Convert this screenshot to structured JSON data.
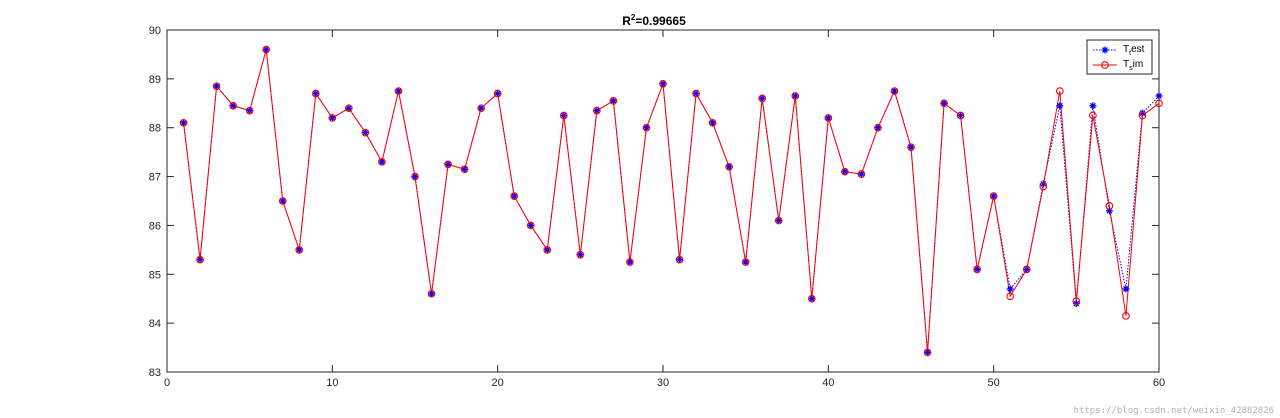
{
  "chart_data": {
    "type": "line",
    "title": "R²=0.99665",
    "title_parts": {
      "base": "R",
      "sup": "2",
      "rest": "=0.99665"
    },
    "xlabel": "",
    "ylabel": "",
    "xlim": [
      0,
      60
    ],
    "ylim": [
      83,
      90
    ],
    "xticks": [
      0,
      10,
      20,
      30,
      40,
      50,
      60
    ],
    "yticks": [
      83,
      84,
      85,
      86,
      87,
      88,
      89,
      90
    ],
    "grid": false,
    "legend_position": "top-right",
    "x": [
      1,
      2,
      3,
      4,
      5,
      6,
      7,
      8,
      9,
      10,
      11,
      12,
      13,
      14,
      15,
      16,
      17,
      18,
      19,
      20,
      21,
      22,
      23,
      24,
      25,
      26,
      27,
      28,
      29,
      30,
      31,
      32,
      33,
      34,
      35,
      36,
      37,
      38,
      39,
      40,
      41,
      42,
      43,
      44,
      45,
      46,
      47,
      48,
      49,
      50,
      51,
      52,
      53,
      54,
      55,
      56,
      57,
      58,
      59,
      60
    ],
    "series": [
      {
        "name": "Ttest",
        "legend_label": {
          "base": "T",
          "sub": "t",
          "rest": "est"
        },
        "color": "#0000ff",
        "line_style": "dotted",
        "marker": "asterisk",
        "values": [
          88.1,
          85.3,
          88.85,
          88.45,
          88.35,
          89.6,
          86.5,
          85.5,
          88.7,
          88.2,
          88.4,
          87.9,
          87.3,
          88.75,
          87.0,
          84.6,
          87.25,
          87.15,
          88.4,
          88.7,
          86.6,
          86.0,
          85.5,
          88.25,
          85.4,
          88.35,
          88.55,
          85.25,
          88.0,
          88.9,
          85.3,
          88.7,
          88.1,
          87.2,
          85.25,
          88.6,
          86.1,
          88.65,
          84.5,
          88.2,
          87.1,
          87.05,
          88.0,
          88.75,
          87.6,
          83.4,
          88.5,
          88.25,
          85.1,
          86.6,
          84.7,
          85.1,
          86.85,
          88.45,
          84.4,
          88.45,
          86.3,
          84.7,
          88.3,
          88.65
        ]
      },
      {
        "name": "Tsim",
        "legend_label": {
          "base": "T",
          "sub": "s",
          "rest": "im"
        },
        "color": "#ff0000",
        "line_style": "solid",
        "marker": "circle",
        "values": [
          88.1,
          85.3,
          88.85,
          88.45,
          88.35,
          89.6,
          86.5,
          85.5,
          88.7,
          88.2,
          88.4,
          87.9,
          87.3,
          88.75,
          87.0,
          84.6,
          87.25,
          87.15,
          88.4,
          88.7,
          86.6,
          86.0,
          85.5,
          88.25,
          85.4,
          88.35,
          88.55,
          85.25,
          88.0,
          88.9,
          85.3,
          88.7,
          88.1,
          87.2,
          85.25,
          88.6,
          86.1,
          88.65,
          84.5,
          88.2,
          87.1,
          87.05,
          88.0,
          88.75,
          87.6,
          83.4,
          88.5,
          88.25,
          85.1,
          86.6,
          84.55,
          85.1,
          86.8,
          88.75,
          84.45,
          88.25,
          86.4,
          84.15,
          88.25,
          88.5
        ]
      }
    ]
  },
  "watermark": "https://blog.csdn.net/weixin_42882826"
}
